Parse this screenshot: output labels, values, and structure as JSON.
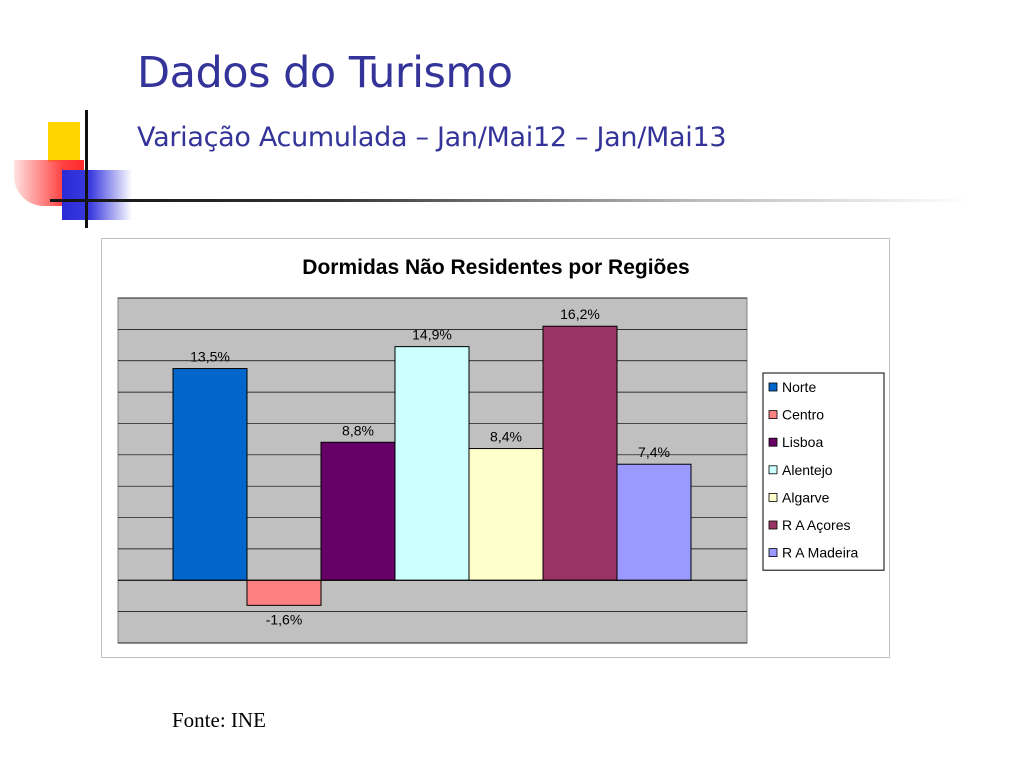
{
  "slide": {
    "title": "Dados do Turismo",
    "subtitle": "Variação Acumulada – Jan/Mai12 – Jan/Mai13",
    "source": "Fonte: INE"
  },
  "colors": {
    "title": "#333399",
    "plot_background": "#c0c0c0",
    "gridline": "#000000"
  },
  "chart_data": {
    "type": "bar",
    "title": "Dormidas Não Residentes por Regiões",
    "categories": [
      "Norte",
      "Centro",
      "Lisboa",
      "Alentejo",
      "Algarve",
      "R A Açores",
      "R A Madeira"
    ],
    "values": [
      13.5,
      -1.6,
      8.8,
      14.9,
      8.4,
      16.2,
      7.4
    ],
    "data_labels": [
      "13,5%",
      "-1,6%",
      "8,8%",
      "14,9%",
      "8,4%",
      "16,2%",
      "7,4%"
    ],
    "bar_colors": [
      "#0066cc",
      "#ff8080",
      "#660066",
      "#ccffff",
      "#ffffcc",
      "#993366",
      "#9999ff"
    ],
    "ylim": [
      -4,
      18
    ],
    "grid_step": 2,
    "grid": true,
    "legend_position": "right",
    "xlabel": "",
    "ylabel": ""
  }
}
